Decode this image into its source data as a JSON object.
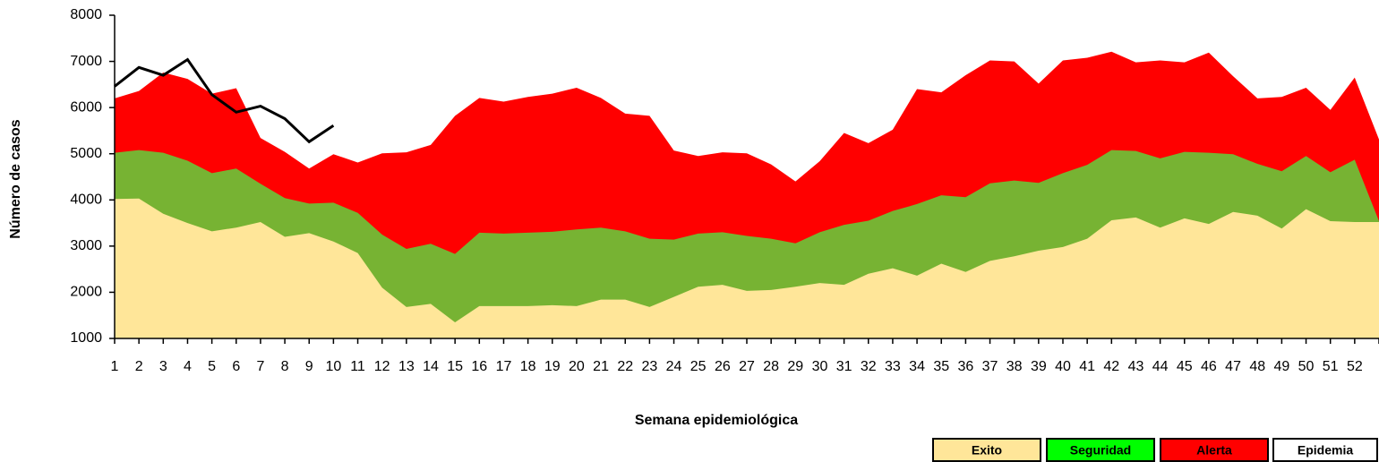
{
  "chart_data": {
    "type": "area",
    "x_label": "Semana epidemiológica",
    "y_label": "Número de casos",
    "categories": [
      "1",
      "2",
      "3",
      "4",
      "5",
      "6",
      "7",
      "8",
      "9",
      "10",
      "11",
      "12",
      "13",
      "14",
      "15",
      "16",
      "17",
      "18",
      "19",
      "20",
      "21",
      "22",
      "23",
      "24",
      "25",
      "26",
      "27",
      "28",
      "29",
      "30",
      "31",
      "32",
      "33",
      "34",
      "35",
      "36",
      "37",
      "38",
      "39",
      "40",
      "41",
      "42",
      "43",
      "44",
      "45",
      "46",
      "47",
      "48",
      "49",
      "50",
      "51",
      "52",
      null
    ],
    "ylim": [
      1000,
      8000
    ],
    "yticks": [
      1000,
      2000,
      3000,
      4000,
      5000,
      6000,
      7000,
      8000
    ],
    "series": [
      {
        "name": "Exito",
        "color": "#ffe699",
        "legend_color": "#ffe699",
        "kind": "area",
        "values": [
          4020,
          4030,
          3700,
          3500,
          3320,
          3400,
          3520,
          3200,
          3280,
          3100,
          2850,
          2100,
          1680,
          1750,
          1350,
          1700,
          1700,
          1700,
          1720,
          1700,
          1840,
          1840,
          1680,
          1900,
          2120,
          2160,
          2030,
          2050,
          2120,
          2200,
          2160,
          2400,
          2520,
          2360,
          2620,
          2440,
          2680,
          2780,
          2900,
          2980,
          3160,
          3560,
          3620,
          3400,
          3600,
          3480,
          3740,
          3660,
          3380,
          3800,
          3540,
          3520,
          3520
        ]
      },
      {
        "name": "Seguridad",
        "color": "#77b333",
        "legend_color": "#00ff00",
        "kind": "area",
        "values": [
          5020,
          5080,
          5020,
          4850,
          4580,
          4680,
          4350,
          4040,
          3920,
          3940,
          3720,
          3250,
          2940,
          3050,
          2830,
          3290,
          3270,
          3290,
          3310,
          3360,
          3400,
          3320,
          3160,
          3140,
          3270,
          3300,
          3220,
          3160,
          3060,
          3300,
          3460,
          3550,
          3760,
          3910,
          4100,
          4060,
          4360,
          4420,
          4370,
          4580,
          4760,
          5080,
          5060,
          4900,
          5040,
          5020,
          4990,
          4780,
          4620,
          4950,
          4600,
          4870,
          3540
        ]
      },
      {
        "name": "Alerta",
        "color": "#ff0000",
        "legend_color": "#ff0000",
        "kind": "area",
        "values": [
          6200,
          6360,
          6760,
          6620,
          6300,
          6420,
          5340,
          5040,
          4680,
          4990,
          4810,
          5010,
          5030,
          5190,
          5820,
          6210,
          6130,
          6230,
          6300,
          6430,
          6210,
          5870,
          5820,
          5070,
          4950,
          5030,
          5010,
          4770,
          4400,
          4840,
          5450,
          5230,
          5520,
          6400,
          6330,
          6700,
          7020,
          7000,
          6520,
          7020,
          7080,
          7210,
          6980,
          7020,
          6980,
          7190,
          6680,
          6200,
          6230,
          6430,
          5950,
          6650,
          5310
        ]
      },
      {
        "name": "Epidemia",
        "color": "#000000",
        "legend_color": "#ffffff",
        "kind": "line",
        "values": [
          6460,
          6870,
          6700,
          7040,
          6280,
          5900,
          6030,
          5760,
          5260,
          5610,
          null,
          null,
          null,
          null,
          null,
          null,
          null,
          null,
          null,
          null,
          null,
          null,
          null,
          null,
          null,
          null,
          null,
          null,
          null,
          null,
          null,
          null,
          null,
          null,
          null,
          null,
          null,
          null,
          null,
          null,
          null,
          null,
          null,
          null,
          null,
          null,
          null,
          null,
          null,
          null,
          null,
          null,
          null
        ]
      }
    ]
  }
}
